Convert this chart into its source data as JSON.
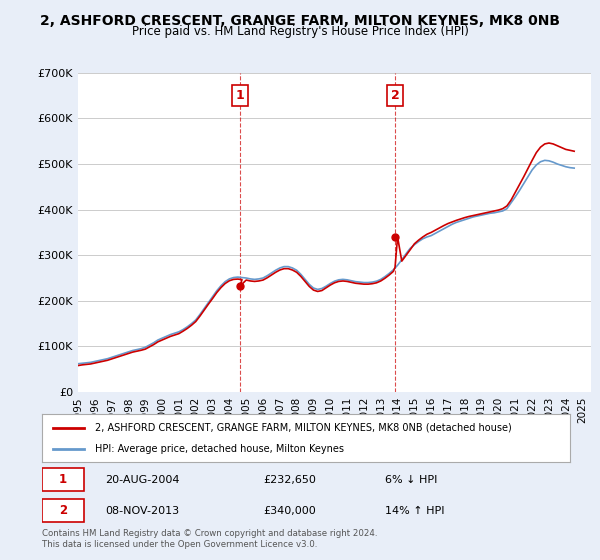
{
  "title": "2, ASHFORD CRESCENT, GRANGE FARM, MILTON KEYNES, MK8 0NB",
  "subtitle": "Price paid vs. HM Land Registry's House Price Index (HPI)",
  "ylabel": "",
  "ylim": [
    0,
    700000
  ],
  "yticks": [
    0,
    100000,
    200000,
    300000,
    400000,
    500000,
    600000,
    700000
  ],
  "ytick_labels": [
    "£0",
    "£100K",
    "£200K",
    "£300K",
    "£400K",
    "£500K",
    "£600K",
    "£700K"
  ],
  "background_color": "#f0f4ff",
  "plot_background": "#ffffff",
  "grid_color": "#cccccc",
  "sale1_date_num": 2004.64,
  "sale1_price": 232650,
  "sale2_date_num": 2013.85,
  "sale2_price": 340000,
  "legend_label_red": "2, ASHFORD CRESCENT, GRANGE FARM, MILTON KEYNES, MK8 0NB (detached house)",
  "legend_label_blue": "HPI: Average price, detached house, Milton Keynes",
  "table_row1": "1     20-AUG-2004          £232,650          6% ↓ HPI",
  "table_row2": "2     08-NOV-2013          £340,000          14% ↑ HPI",
  "footnote": "Contains HM Land Registry data © Crown copyright and database right 2024.\nThis data is licensed under the Open Government Licence v3.0.",
  "hpi_data": {
    "years": [
      1995.0,
      1995.25,
      1995.5,
      1995.75,
      1996.0,
      1996.25,
      1996.5,
      1996.75,
      1997.0,
      1997.25,
      1997.5,
      1997.75,
      1998.0,
      1998.25,
      1998.5,
      1998.75,
      1999.0,
      1999.25,
      1999.5,
      1999.75,
      2000.0,
      2000.25,
      2000.5,
      2000.75,
      2001.0,
      2001.25,
      2001.5,
      2001.75,
      2002.0,
      2002.25,
      2002.5,
      2002.75,
      2003.0,
      2003.25,
      2003.5,
      2003.75,
      2004.0,
      2004.25,
      2004.5,
      2004.75,
      2005.0,
      2005.25,
      2005.5,
      2005.75,
      2006.0,
      2006.25,
      2006.5,
      2006.75,
      2007.0,
      2007.25,
      2007.5,
      2007.75,
      2008.0,
      2008.25,
      2008.5,
      2008.75,
      2009.0,
      2009.25,
      2009.5,
      2009.75,
      2010.0,
      2010.25,
      2010.5,
      2010.75,
      2011.0,
      2011.25,
      2011.5,
      2011.75,
      2012.0,
      2012.25,
      2012.5,
      2012.75,
      2013.0,
      2013.25,
      2013.5,
      2013.75,
      2014.0,
      2014.25,
      2014.5,
      2014.75,
      2015.0,
      2015.25,
      2015.5,
      2015.75,
      2016.0,
      2016.25,
      2016.5,
      2016.75,
      2017.0,
      2017.25,
      2017.5,
      2017.75,
      2018.0,
      2018.25,
      2018.5,
      2018.75,
      2019.0,
      2019.25,
      2019.5,
      2019.75,
      2020.0,
      2020.25,
      2020.5,
      2020.75,
      2021.0,
      2021.25,
      2021.5,
      2021.75,
      2022.0,
      2022.25,
      2022.5,
      2022.75,
      2023.0,
      2023.25,
      2023.5,
      2023.75,
      2024.0,
      2024.25,
      2024.5
    ],
    "values": [
      62000,
      63000,
      64000,
      65000,
      67000,
      69000,
      71000,
      73000,
      76000,
      79000,
      82000,
      85000,
      88000,
      91000,
      93000,
      95000,
      98000,
      103000,
      108000,
      114000,
      118000,
      122000,
      126000,
      129000,
      132000,
      137000,
      143000,
      150000,
      158000,
      170000,
      183000,
      196000,
      209000,
      222000,
      233000,
      242000,
      248000,
      251000,
      252000,
      251000,
      250000,
      248000,
      247000,
      248000,
      250000,
      255000,
      261000,
      267000,
      272000,
      275000,
      275000,
      272000,
      267000,
      258000,
      247000,
      236000,
      228000,
      225000,
      227000,
      232000,
      238000,
      243000,
      246000,
      247000,
      246000,
      244000,
      242000,
      241000,
      240000,
      240000,
      241000,
      243000,
      247000,
      253000,
      260000,
      268000,
      278000,
      290000,
      303000,
      315000,
      323000,
      330000,
      336000,
      340000,
      343000,
      348000,
      353000,
      358000,
      363000,
      368000,
      372000,
      375000,
      378000,
      381000,
      384000,
      386000,
      388000,
      390000,
      392000,
      393000,
      395000,
      397000,
      402000,
      415000,
      428000,
      442000,
      457000,
      472000,
      487000,
      498000,
      505000,
      508000,
      507000,
      504000,
      500000,
      497000,
      494000,
      492000,
      491000
    ]
  },
  "price_paid_data": {
    "years": [
      1995.0,
      1995.25,
      1995.5,
      1995.75,
      1996.0,
      1996.25,
      1996.5,
      1996.75,
      1997.0,
      1997.25,
      1997.5,
      1997.75,
      1998.0,
      1998.25,
      1998.5,
      1998.75,
      1999.0,
      1999.25,
      1999.5,
      1999.75,
      2000.0,
      2000.25,
      2000.5,
      2000.75,
      2001.0,
      2001.25,
      2001.5,
      2001.75,
      2002.0,
      2002.25,
      2002.5,
      2002.75,
      2003.0,
      2003.25,
      2003.5,
      2003.75,
      2004.0,
      2004.25,
      2004.5,
      2004.75,
      2004.64,
      2005.0,
      2005.25,
      2005.5,
      2005.75,
      2006.0,
      2006.25,
      2006.5,
      2006.75,
      2007.0,
      2007.25,
      2007.5,
      2007.75,
      2008.0,
      2008.25,
      2008.5,
      2008.75,
      2009.0,
      2009.25,
      2009.5,
      2009.75,
      2010.0,
      2010.25,
      2010.5,
      2010.75,
      2011.0,
      2011.25,
      2011.5,
      2011.75,
      2012.0,
      2012.25,
      2012.5,
      2012.75,
      2013.0,
      2013.25,
      2013.5,
      2013.75,
      2013.85,
      2014.0,
      2014.25,
      2014.5,
      2014.75,
      2015.0,
      2015.25,
      2015.5,
      2015.75,
      2016.0,
      2016.25,
      2016.5,
      2016.75,
      2017.0,
      2017.25,
      2017.5,
      2017.75,
      2018.0,
      2018.25,
      2018.5,
      2018.75,
      2019.0,
      2019.25,
      2019.5,
      2019.75,
      2020.0,
      2020.25,
      2020.5,
      2020.75,
      2021.0,
      2021.25,
      2021.5,
      2021.75,
      2022.0,
      2022.25,
      2022.5,
      2022.75,
      2023.0,
      2023.25,
      2023.5,
      2023.75,
      2024.0,
      2024.25,
      2024.5
    ],
    "values": [
      58000,
      59500,
      60500,
      61500,
      63500,
      65500,
      67500,
      69500,
      72500,
      75500,
      78500,
      81500,
      84500,
      87500,
      89500,
      91500,
      94000,
      99000,
      104000,
      110000,
      114000,
      118000,
      122000,
      125000,
      128000,
      133500,
      139500,
      146500,
      154500,
      166500,
      179500,
      192500,
      205000,
      218000,
      229000,
      238000,
      244000,
      247000,
      247650,
      246500,
      232650,
      245500,
      243500,
      242500,
      243500,
      245500,
      250500,
      256500,
      262500,
      267500,
      270500,
      270500,
      267500,
      262500,
      253500,
      242500,
      231500,
      223500,
      220500,
      222500,
      228500,
      234500,
      239500,
      242500,
      243500,
      242500,
      240500,
      238500,
      237500,
      236500,
      236500,
      237500,
      239500,
      243500,
      249500,
      256500,
      264500,
      273500,
      340000,
      287000,
      299500,
      312000,
      325000,
      333000,
      340000,
      346000,
      350000,
      355000,
      360000,
      365000,
      369500,
      373000,
      376500,
      379500,
      382500,
      385000,
      387000,
      389000,
      391000,
      393000,
      395000,
      397000,
      399000,
      402000,
      408000,
      421000,
      438000,
      455000,
      472000,
      490000,
      508000,
      525000,
      537000,
      544000,
      546000,
      544000,
      540000,
      536000,
      532000,
      530000,
      528000
    ]
  },
  "sale1_marker_year": 2004.64,
  "sale2_marker_year": 2013.85,
  "xtick_years": [
    1995,
    1996,
    1997,
    1998,
    1999,
    2000,
    2001,
    2002,
    2003,
    2004,
    2005,
    2006,
    2007,
    2008,
    2009,
    2010,
    2011,
    2012,
    2013,
    2014,
    2015,
    2016,
    2017,
    2018,
    2019,
    2020,
    2021,
    2022,
    2023,
    2024,
    2025
  ]
}
